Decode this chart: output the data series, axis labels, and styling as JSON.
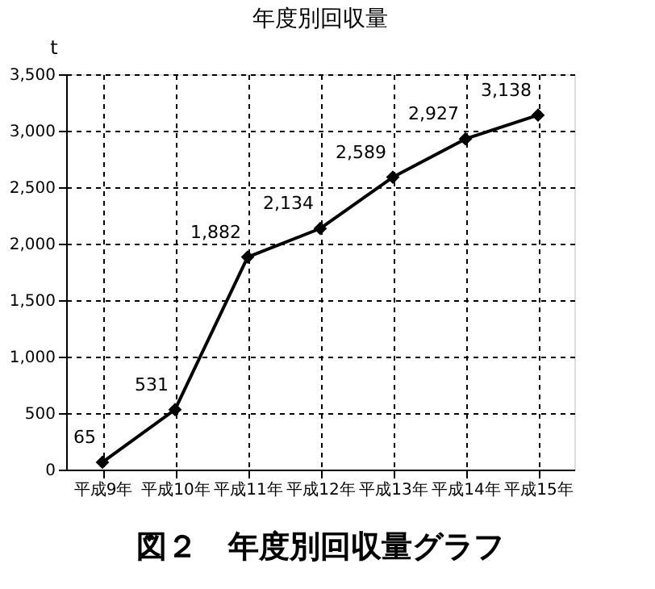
{
  "chart_data": {
    "type": "line",
    "title": "年度別回収量",
    "ylabel": "t",
    "categories": [
      "平成9年",
      "平成10年",
      "平成11年",
      "平成12年",
      "平成13年",
      "平成14年",
      "平成15年"
    ],
    "values": [
      65,
      531,
      1882,
      2134,
      2589,
      2927,
      3138
    ],
    "value_labels": [
      "65",
      "531",
      "1,882",
      "2,134",
      "2,589",
      "2,927",
      "3,138"
    ],
    "color": "#000000",
    "marker": "diamond",
    "line_style": "solid",
    "grid": true,
    "ylim": [
      0,
      3500
    ],
    "yticks": [
      0,
      {
        "value": 500,
        "label": "500"
      },
      {
        "value": 1000,
        "label": "1,000"
      },
      {
        "value": 1500,
        "label": "1,500"
      },
      {
        "value": 2000,
        "label": "2,000"
      },
      {
        "value": 2500,
        "label": "2,500"
      },
      {
        "value": 3000,
        "label": "3,000"
      },
      {
        "value": 3500,
        "label": "3,500"
      }
    ],
    "annotations": [
      "図２　年度別回収量グラフ"
    ]
  }
}
